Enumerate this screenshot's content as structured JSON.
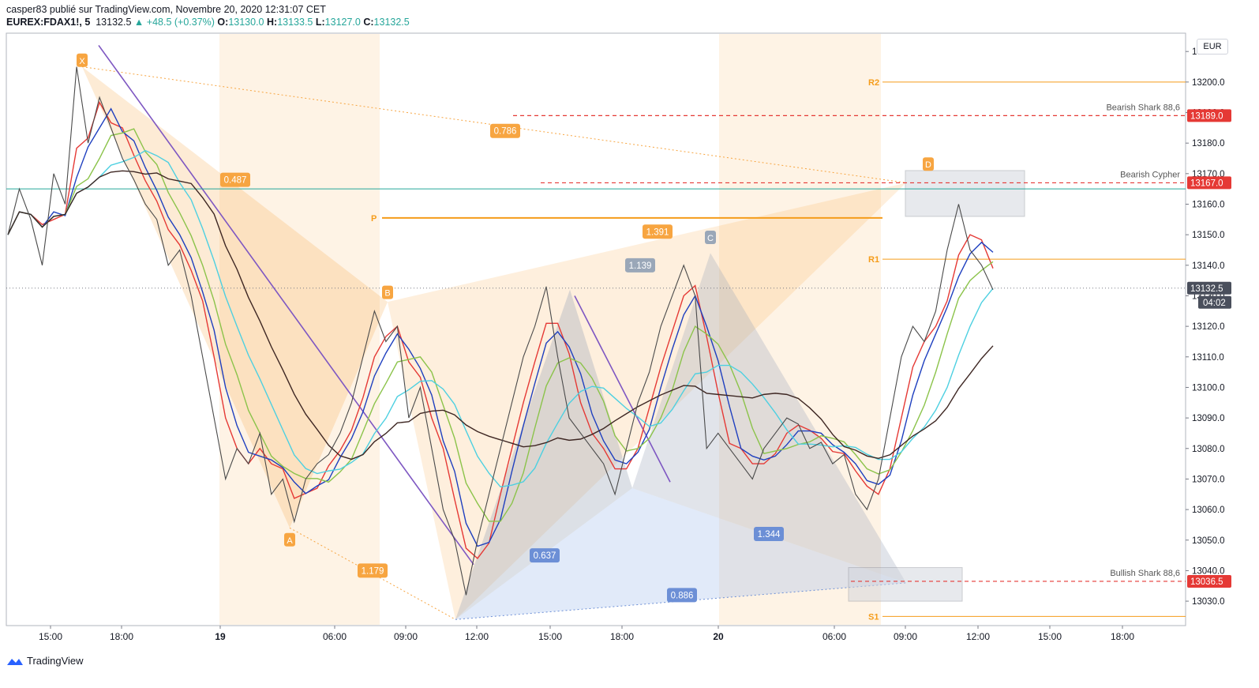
{
  "header": {
    "line1": "casper83 publié sur TradingView.com, Novembre 20, 2020 12:31:07 CET",
    "symbol": "EUREX:FDAX1!, 5",
    "last": "13132.5",
    "change": "+48.5 (+0.37%)",
    "o_label": "O:",
    "o": "13130.0",
    "h_label": "H:",
    "h": "13133.5",
    "l_label": "L:",
    "l": "13127.0",
    "c_label": "C:",
    "c": "13132.5"
  },
  "currency": "EUR",
  "footer": {
    "brand": "TradingView"
  },
  "colors": {
    "up": "#26a69a",
    "down": "#ef5350",
    "orange": "#f7a541",
    "blue": "#6c8fd6",
    "red_line": "#e53935"
  },
  "chart_data": {
    "type": "line",
    "ylim": [
      13022,
      13216
    ],
    "y_ticks": [
      13030,
      13040,
      13050,
      13060,
      13070,
      13080,
      13090,
      13100,
      13110,
      13120,
      13130,
      13140,
      13150,
      13160,
      13170,
      13180,
      13190,
      13200,
      13210
    ],
    "x_ticks": [
      "15:00",
      "18:00",
      "19",
      "06:00",
      "09:00",
      "12:00",
      "15:00",
      "18:00",
      "20",
      "06:00",
      "09:00",
      "12:00",
      "15:00",
      "18:00"
    ],
    "price_series": {
      "points": [
        [
          0,
          13150
        ],
        [
          1,
          13165
        ],
        [
          2,
          13155
        ],
        [
          3,
          13140
        ],
        [
          4,
          13170
        ],
        [
          5,
          13160
        ],
        [
          6,
          13205
        ],
        [
          7,
          13180
        ],
        [
          8,
          13195
        ],
        [
          9,
          13185
        ],
        [
          10,
          13175
        ],
        [
          11,
          13168
        ],
        [
          12,
          13160
        ],
        [
          13,
          13155
        ],
        [
          14,
          13140
        ],
        [
          15,
          13145
        ],
        [
          16,
          13130
        ],
        [
          17,
          13110
        ],
        [
          18,
          13090
        ],
        [
          19,
          13070
        ],
        [
          20,
          13080
        ],
        [
          21,
          13075
        ],
        [
          22,
          13085
        ],
        [
          23,
          13065
        ],
        [
          24,
          13070
        ],
        [
          25,
          13056
        ],
        [
          26,
          13070
        ],
        [
          27,
          13075
        ],
        [
          28,
          13078
        ],
        [
          29,
          13085
        ],
        [
          30,
          13095
        ],
        [
          31,
          13110
        ],
        [
          32,
          13125
        ],
        [
          33,
          13115
        ],
        [
          34,
          13120
        ],
        [
          35,
          13090
        ],
        [
          36,
          13100
        ],
        [
          37,
          13080
        ],
        [
          38,
          13060
        ],
        [
          39,
          13050
        ],
        [
          40,
          13032
        ],
        [
          41,
          13050
        ],
        [
          42,
          13065
        ],
        [
          43,
          13080
        ],
        [
          44,
          13095
        ],
        [
          45,
          13110
        ],
        [
          46,
          13120
        ],
        [
          47,
          13133
        ],
        [
          48,
          13110
        ],
        [
          49,
          13090
        ],
        [
          50,
          13085
        ],
        [
          51,
          13080
        ],
        [
          52,
          13075
        ],
        [
          53,
          13065
        ],
        [
          54,
          13080
        ],
        [
          55,
          13095
        ],
        [
          56,
          13105
        ],
        [
          57,
          13120
        ],
        [
          58,
          13130
        ],
        [
          59,
          13140
        ],
        [
          60,
          13130
        ],
        [
          61,
          13080
        ],
        [
          62,
          13085
        ],
        [
          63,
          13080
        ],
        [
          64,
          13075
        ],
        [
          65,
          13070
        ],
        [
          66,
          13080
        ],
        [
          67,
          13085
        ],
        [
          68,
          13090
        ],
        [
          69,
          13088
        ],
        [
          70,
          13080
        ],
        [
          71,
          13082
        ],
        [
          72,
          13075
        ],
        [
          73,
          13078
        ],
        [
          74,
          13065
        ],
        [
          75,
          13060
        ],
        [
          76,
          13070
        ],
        [
          77,
          13090
        ],
        [
          78,
          13110
        ],
        [
          79,
          13120
        ],
        [
          80,
          13115
        ],
        [
          81,
          13125
        ],
        [
          82,
          13145
        ],
        [
          83,
          13160
        ],
        [
          84,
          13145
        ],
        [
          85,
          13140
        ],
        [
          86,
          13132
        ]
      ]
    },
    "current_price": {
      "value": 13132.5,
      "label": "13132.5",
      "timer": "04:02"
    },
    "level_tags": [
      {
        "label": "Bearish Shark 88,6",
        "value": 13189.0,
        "tag": "13189.0"
      },
      {
        "label": "Bearish Cypher",
        "value": 13167.0,
        "tag": "13167.0"
      },
      {
        "label": "Bullish Shark 88,6",
        "value": 13036.5,
        "tag": "13036.5"
      }
    ],
    "pivots": [
      {
        "label": "R2",
        "value": 13200
      },
      {
        "label": "P",
        "value": 13155.5
      },
      {
        "label": "R1",
        "value": 13142
      },
      {
        "label": "S1",
        "value": 13025
      }
    ],
    "pattern_labels": [
      "X",
      "A",
      "B",
      "C",
      "D"
    ],
    "ratios": [
      "0.786",
      "0.487",
      "1.391",
      "1.139",
      "1.179",
      "0.637",
      "1.344",
      "0.886"
    ]
  }
}
